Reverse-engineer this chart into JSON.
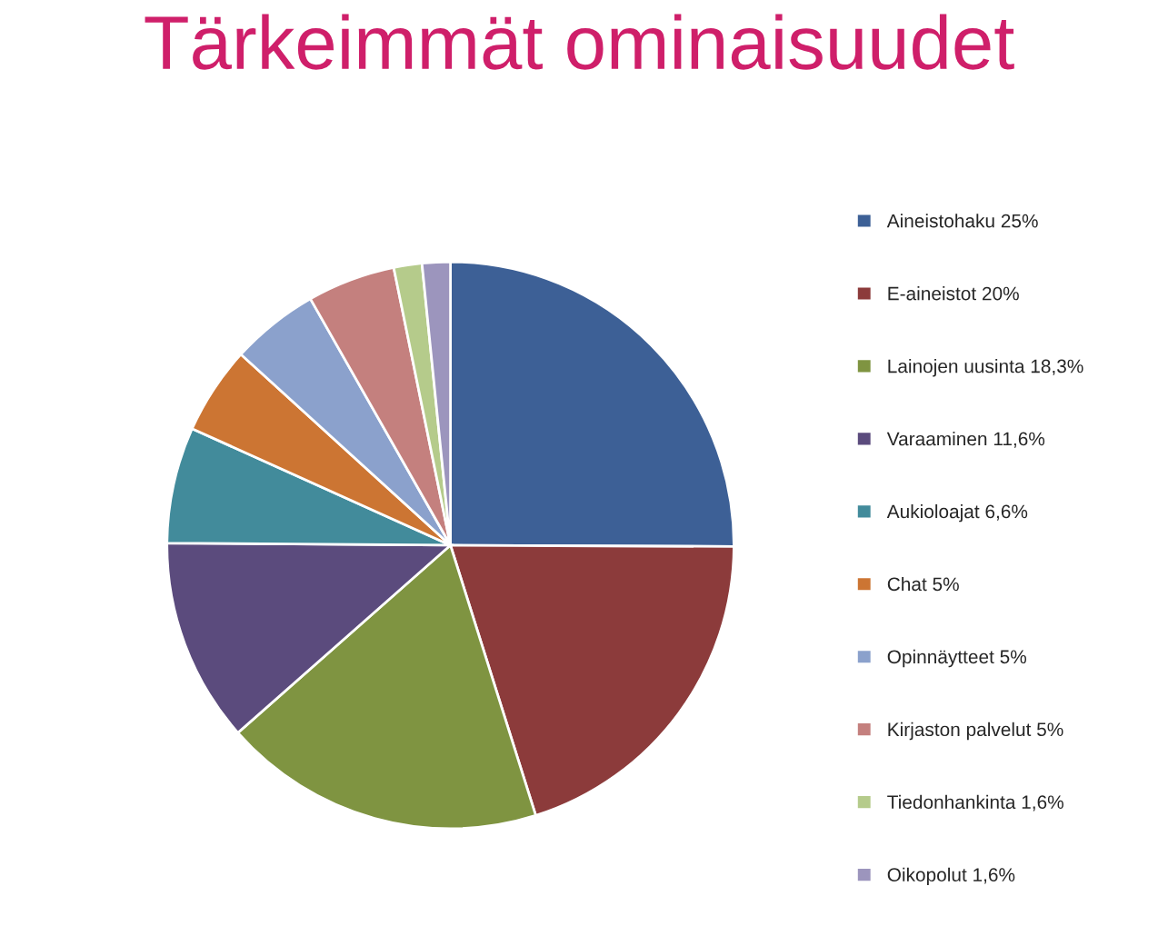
{
  "chart_data": {
    "type": "pie",
    "title": "Tärkeimmät ominaisuudet",
    "categories": [
      "Aineistohaku",
      "E-aineistot",
      "Lainojen uusinta",
      "Varaaminen",
      "Aukioloajat",
      "Chat",
      "Opinnäytteet",
      "Kirjaston palvelut",
      "Tiedonhankinta",
      "Oikopolut"
    ],
    "values": [
      25,
      20,
      18.3,
      11.6,
      6.6,
      5,
      5,
      5,
      1.6,
      1.6
    ],
    "value_labels": [
      "25%",
      "20%",
      "18,3%",
      "11,6%",
      "6,6%",
      "5%",
      "5%",
      "5%",
      "1,6%",
      "1,6%"
    ],
    "colors": [
      "#3d6096",
      "#8c3b3b",
      "#7f9441",
      "#5b4b7d",
      "#428b9b",
      "#cc7533",
      "#8ba1cc",
      "#c4807e",
      "#b5cb8b",
      "#9c95bd"
    ],
    "legend": "right"
  }
}
